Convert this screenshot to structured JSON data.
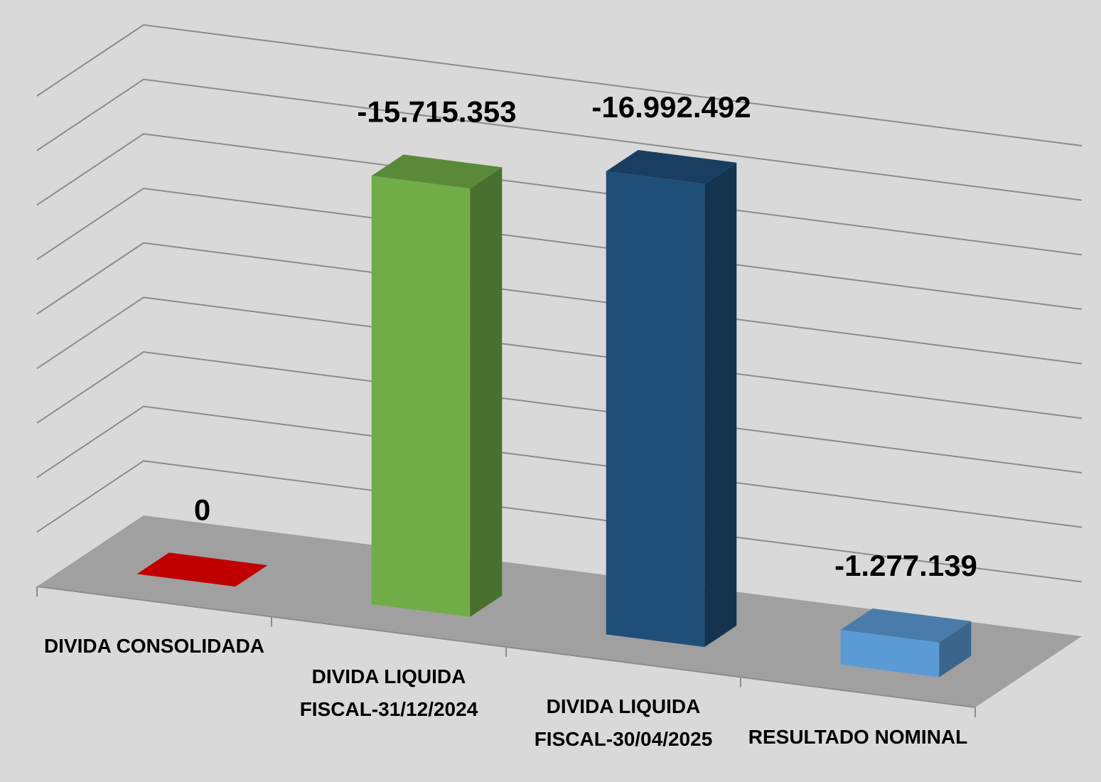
{
  "chart_data": {
    "type": "bar3d",
    "categories": [
      "DIVIDA CONSOLIDADA",
      "DIVIDA LIQUIDA FISCAL-31/12/2024",
      "DIVIDA LIQUIDA FISCAL-30/04/2025",
      "RESULTADO NOMINAL"
    ],
    "values": [
      0,
      -15715353,
      -16992492,
      -1277139
    ],
    "value_labels": [
      "0",
      "-15.715.353",
      "-16.992.492",
      "-1.277.139"
    ],
    "colors": [
      "#c00000",
      "#70ad47",
      "#1f4e79",
      "#5b9bd5"
    ],
    "ylim": [
      0,
      -18000000
    ],
    "yticks": [
      0,
      -2000000,
      -4000000,
      -6000000,
      -8000000,
      -10000000,
      -12000000,
      -14000000,
      -16000000,
      -18000000
    ],
    "grid": true
  }
}
